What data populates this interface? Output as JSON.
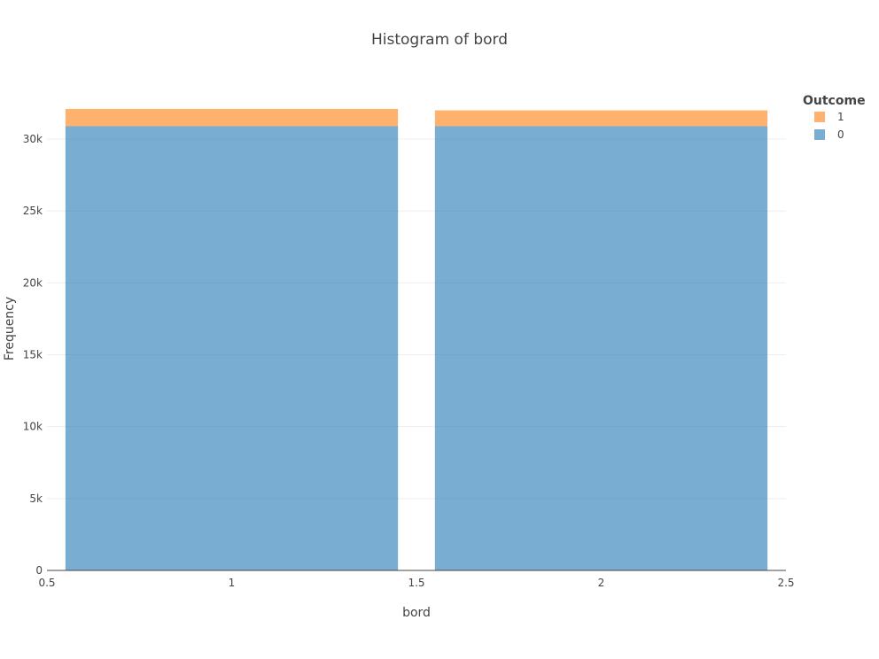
{
  "chart_data": {
    "type": "bar",
    "title": "Histogram of bord",
    "xlabel": "bord",
    "ylabel": "Frequency",
    "barmode": "stack",
    "bins": [
      {
        "x0": 0.55,
        "x1": 1.45
      },
      {
        "x0": 1.55,
        "x1": 2.45
      }
    ],
    "x_ticks": [
      {
        "value": 0.5,
        "label": "0.5"
      },
      {
        "value": 1,
        "label": "1"
      },
      {
        "value": 1.5,
        "label": "1.5"
      },
      {
        "value": 2,
        "label": "2"
      },
      {
        "value": 2.5,
        "label": "2.5"
      }
    ],
    "y_ticks": [
      {
        "value": 0,
        "label": "0"
      },
      {
        "value": 5000,
        "label": "5k"
      },
      {
        "value": 10000,
        "label": "10k"
      },
      {
        "value": 15000,
        "label": "15k"
      },
      {
        "value": 20000,
        "label": "20k"
      },
      {
        "value": 25000,
        "label": "25k"
      },
      {
        "value": 30000,
        "label": "30k"
      }
    ],
    "xlim": [
      0.5,
      2.5
    ],
    "ylim": [
      0,
      33700
    ],
    "grid": true,
    "series": [
      {
        "name": "0",
        "values": [
          30900,
          30900
        ],
        "color": "#1f77b4",
        "opacity": 0.6
      },
      {
        "name": "1",
        "values": [
          1200,
          1100
        ],
        "color": "#ff7f0e",
        "opacity": 0.6
      }
    ],
    "legend": {
      "title": "Outcome",
      "placement": "top-right",
      "order": [
        "1",
        "0"
      ]
    }
  }
}
